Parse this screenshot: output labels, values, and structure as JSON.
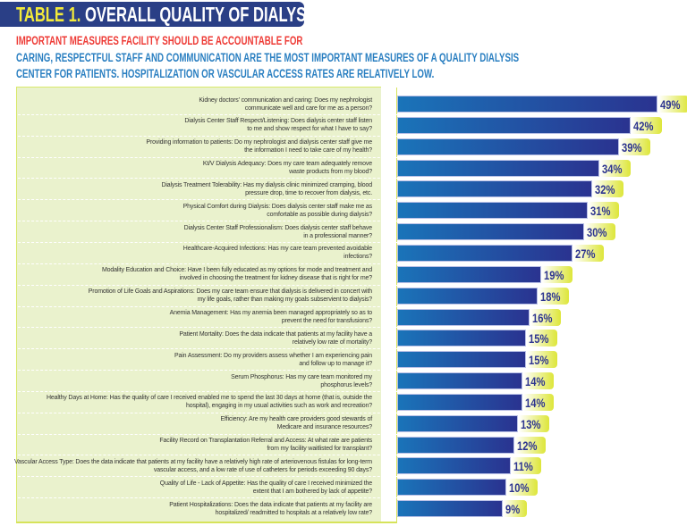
{
  "title": {
    "prefix": "TABLE 1.",
    "main": "OVERALL QUALITY OF DIALYSIS CENTER"
  },
  "subtitle_red": "IMPORTANT MEASURES FACILITY SHOULD BE ACCOUNTABLE FOR",
  "subtitle_blue": [
    "CARING, RESPECTFUL STAFF AND COMMUNICATION ARE THE MOST IMPORTANT MEASURES OF A QUALITY DIALYSIS",
    "CENTER FOR PATIENTS. HOSPITALIZATION OR VASCULAR ACCESS RATES ARE RELATIVELY LOW."
  ],
  "colors": {
    "banner": "#2a3f86",
    "title_highlight": "#f2ea3a",
    "subtitle_red": "#ee3b36",
    "subtitle_blue": "#2a7fc1",
    "bar_start": "#1a74b9",
    "bar_end": "#2a3390",
    "panel": "#eaf2cd",
    "value_badge": "#dde63a"
  },
  "chart_data": {
    "type": "bar",
    "orientation": "horizontal",
    "categories": [
      [
        "Kidney doctors' communication and caring: Does my nephrologist",
        "communicate well and care for me as a person?"
      ],
      [
        "Dialysis Center Staff Respect/Listening: Does dialysis center staff listen",
        "to me and show respect for what I have to say?"
      ],
      [
        "Providing information to patients: Do my nephrologist and dialysis center staff give me",
        "the information I need to take care of my health?"
      ],
      [
        "Kt/V Dialysis Adequacy: Does my care team adequately remove",
        "waste products from my blood?"
      ],
      [
        "Dialysis Treatment Tolerability:  Has my dialysis clinic minimized cramping, blood",
        "pressure drop, time to recover from dialysis, etc."
      ],
      [
        "Physical Comfort during Dialysis: Does dialysis center staff make me as",
        "comfortable as possible during dialysis?"
      ],
      [
        "Dialysis Center Staff Professionalism: Does dialysis center staff behave",
        "in a professional manner?"
      ],
      [
        "Healthcare-Acquired Infections: Has my care team prevented avoidable",
        "infections?"
      ],
      [
        "Modality Education and Choice: Have I been fully educated as my options for mode and treatment and",
        "involved in choosing the treatment for kidney disease that is right for me?"
      ],
      [
        "Promotion of Life Goals and Aspirations:  Does my care team ensure that dialysis is delivered in concert with",
        "my life goals, rather than making my goals subservient to dialysis?"
      ],
      [
        "Anemia Management: Has my anemia been managed appropriately so as to",
        "prevent the need for transfusions?"
      ],
      [
        "Patient Mortality: Does the data indicate that patients at my facility have a",
        "relatively low rate of mortality?"
      ],
      [
        "Pain Assessment: Do my providers assess whether I am experiencing pain",
        "and follow up to manage it?"
      ],
      [
        "Serum Phosphorus: Has my care team monitored my",
        "phosphorus levels?"
      ],
      [
        "Healthy Days at Home: Has the quality of care I received enabled me to spend the last 30 days at home (that is, outside the",
        "hospital), engaging in my usual activities such as work and recreation?"
      ],
      [
        "Efficiency: Are my health care providers good stewards of",
        "Medicare and insurance resources?"
      ],
      [
        "Facility Record on Transplantation Referral and Access:  At what rate are patients",
        "from my facility waitlisted for transplant?"
      ],
      [
        "Vascular Access Type: Does the data indicate that patients at my facility have a relatively high rate of arteriovenous fistulas for long-term",
        "vascular access, and a low rate of use of catheters for periods exceeding 90 days?"
      ],
      [
        "Quality of Life - Lack of Appetite: Has the quality of care I received minimized the",
        "extent that I am bothered by lack of appetite?"
      ],
      [
        "Patient Hospitalizations: Does the data indicate that patients at my facility are",
        "hospitalized/ readmitted to hospitals at a relatively low rate?"
      ]
    ],
    "values": [
      49,
      42,
      39,
      34,
      32,
      31,
      30,
      27,
      19,
      18,
      16,
      15,
      15,
      14,
      14,
      13,
      12,
      11,
      10,
      9
    ],
    "value_labels": [
      "49%",
      "42%",
      "39%",
      "34%",
      "32%",
      "31%",
      "30%",
      "27%",
      "19%",
      "18%",
      "16%",
      "15%",
      "15%",
      "14%",
      "14%",
      "13%",
      "12%",
      "11%",
      "10%",
      "9%"
    ],
    "unit": "%",
    "grid": false
  }
}
